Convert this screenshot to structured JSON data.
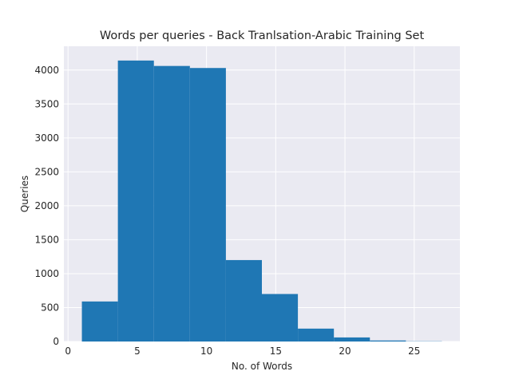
{
  "chart_data": {
    "type": "bar",
    "title": "Words per queries - Back Tranlsation-Arabic Training Set",
    "xlabel": "No. of Words",
    "ylabel": "Queries",
    "xlim": [
      -0.3,
      28.3
    ],
    "ylim": [
      0,
      4350
    ],
    "xticks": [
      0,
      5,
      10,
      15,
      20,
      25
    ],
    "yticks": [
      0,
      500,
      1000,
      1500,
      2000,
      2500,
      3000,
      3500,
      4000
    ],
    "bin_edges": [
      1.0,
      3.6,
      6.2,
      8.8,
      11.4,
      14.0,
      16.6,
      19.2,
      21.8,
      24.4,
      27.0
    ],
    "values": [
      590,
      4140,
      4060,
      4030,
      1200,
      700,
      190,
      60,
      15,
      3
    ],
    "grid": true,
    "bar_color": "#1f77b4",
    "background_color": "#eaeaf2",
    "grid_color": "#ffffff"
  }
}
